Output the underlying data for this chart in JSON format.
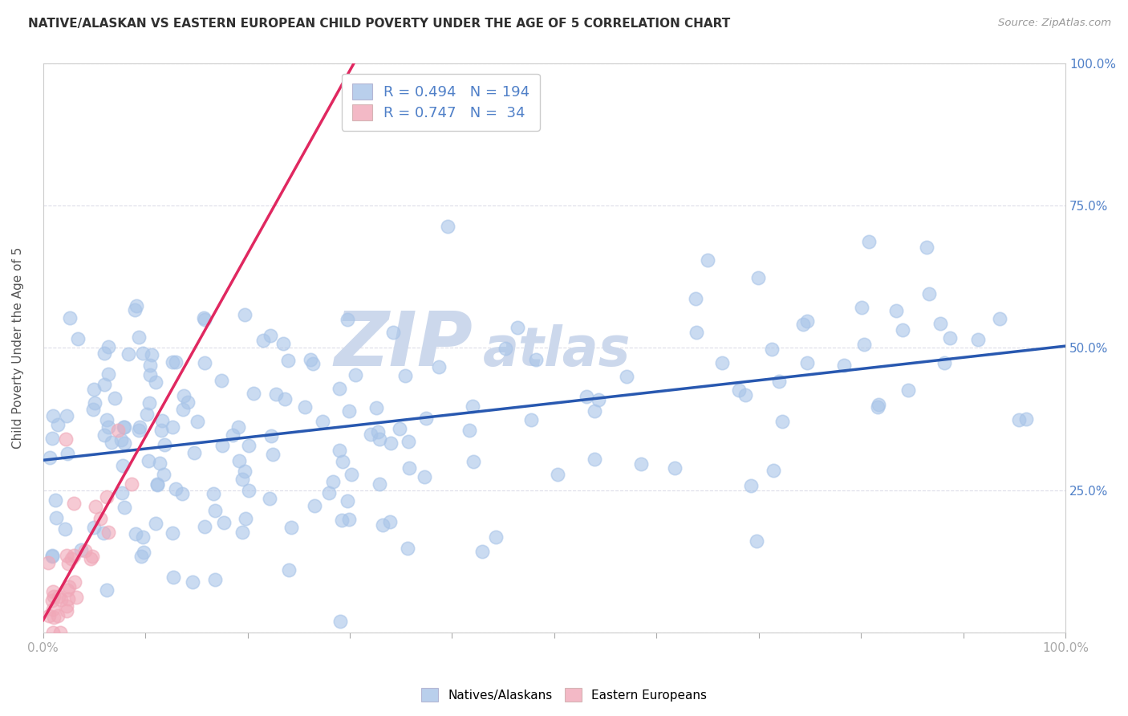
{
  "title": "NATIVE/ALASKAN VS EASTERN EUROPEAN CHILD POVERTY UNDER THE AGE OF 5 CORRELATION CHART",
  "source": "Source: ZipAtlas.com",
  "ylabel": "Child Poverty Under the Age of 5",
  "xlim": [
    0.0,
    1.0
  ],
  "ylim": [
    0.0,
    1.0
  ],
  "blue_R": 0.494,
  "blue_N": 194,
  "pink_R": 0.747,
  "pink_N": 34,
  "blue_color": "#a8c4e8",
  "pink_color": "#f0a8b8",
  "blue_line_color": "#2858b0",
  "pink_line_color": "#e02860",
  "title_color": "#303030",
  "axis_color": "#5080c8",
  "watermark_color": "#ccd8ec",
  "background_color": "#ffffff",
  "grid_color": "#dcdce8",
  "legend_box_color": "#ffffff",
  "figsize": [
    14.06,
    8.92
  ],
  "dpi": 100
}
